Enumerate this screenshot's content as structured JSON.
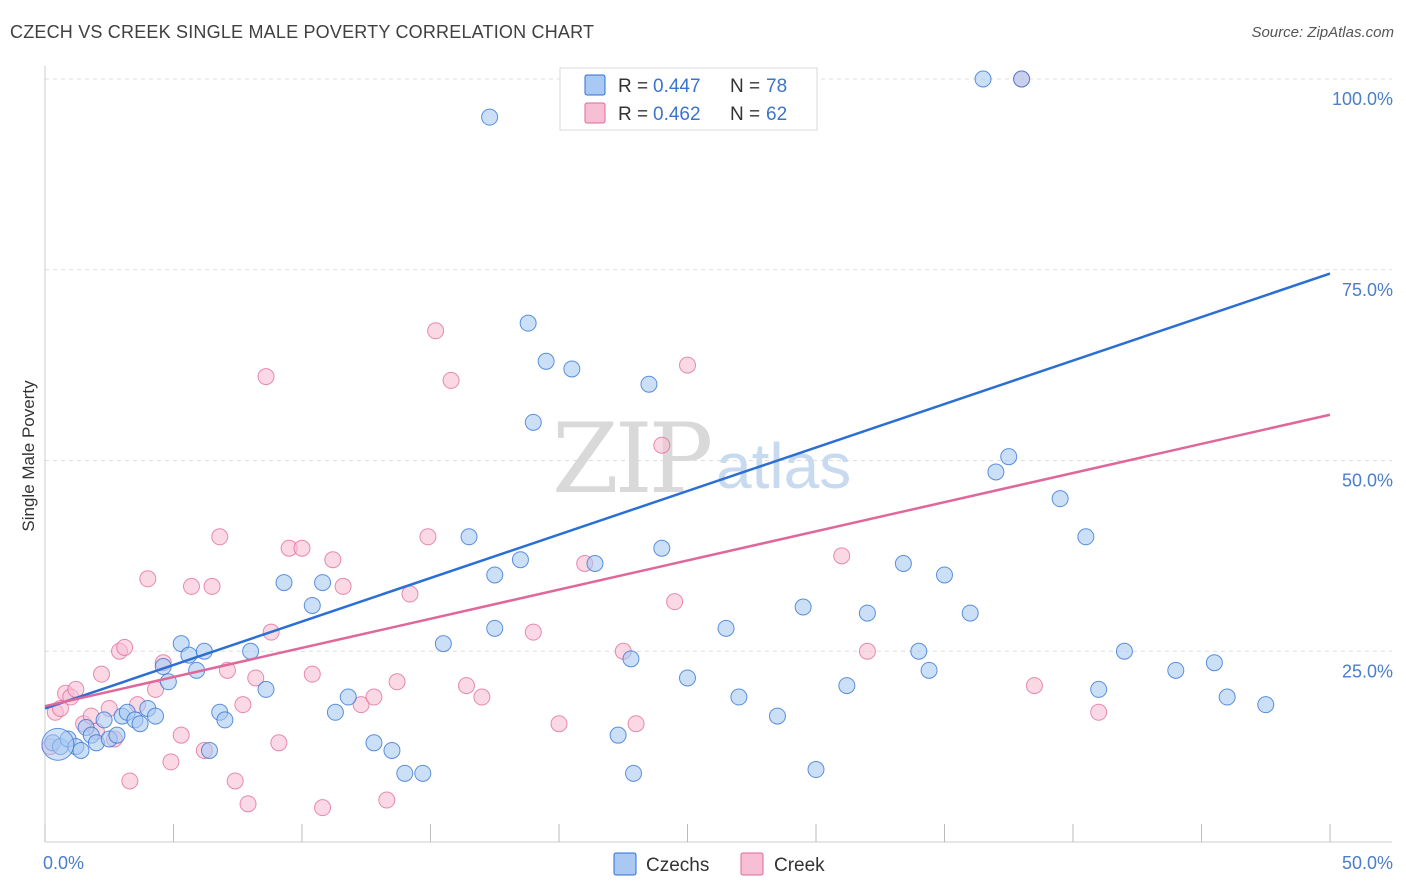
{
  "title": "CZECH VS CREEK SINGLE MALE POVERTY CORRELATION CHART",
  "source": "Source: ZipAtlas.com",
  "watermark": {
    "zip": "ZIP",
    "atlas": "atlas"
  },
  "colors": {
    "czech": "#2b6fd4",
    "czech_fill": "#a9c9f2",
    "creek": "#e0679a",
    "creek_fill": "#f7bfd3",
    "grid": "#dddddd",
    "axis_label": "#4a7ec9"
  },
  "legend": {
    "czech": {
      "r_label": "R = ",
      "r_value": "0.447",
      "n_label": "N = ",
      "n_value": "78"
    },
    "creek": {
      "r_label": "R = ",
      "r_value": "0.462",
      "n_label": "N = ",
      "n_value": "62"
    }
  },
  "bottom_legend": {
    "czech": "Czechs",
    "creek": "Creek"
  },
  "chart_data": {
    "type": "scatter",
    "title": "CZECH VS CREEK SINGLE MALE POVERTY CORRELATION CHART",
    "xlabel": "",
    "ylabel": "Single Male Poverty",
    "xlim": [
      0,
      50
    ],
    "ylim": [
      0,
      100
    ],
    "x_tick_labels": [
      {
        "value": 0,
        "label": "0.0%"
      },
      {
        "value": 50,
        "label": "50.0%"
      }
    ],
    "y_tick_labels": [
      {
        "value": 25,
        "label": "25.0%"
      },
      {
        "value": 50,
        "label": "50.0%"
      },
      {
        "value": 75,
        "label": "75.0%"
      },
      {
        "value": 100,
        "label": "100.0%"
      }
    ],
    "x_ticks": [
      0,
      5,
      10,
      15,
      20,
      25,
      30,
      35,
      40,
      45,
      50
    ],
    "series": [
      {
        "name": "Czechs",
        "r": 0.447,
        "n": 78,
        "trend": {
          "x0": 0,
          "y0": 17.5,
          "x1": 50,
          "y1": 74.5
        },
        "points": [
          [
            0.3,
            13
          ],
          [
            0.6,
            12.5
          ],
          [
            0.9,
            13.5
          ],
          [
            1.2,
            12.5
          ],
          [
            1.4,
            12
          ],
          [
            1.6,
            15
          ],
          [
            1.8,
            14
          ],
          [
            2.0,
            13
          ],
          [
            2.3,
            16
          ],
          [
            2.5,
            13.5
          ],
          [
            2.8,
            14
          ],
          [
            3.0,
            16.5
          ],
          [
            3.2,
            17
          ],
          [
            3.5,
            16
          ],
          [
            3.7,
            15.5
          ],
          [
            4.0,
            17.5
          ],
          [
            4.3,
            16.5
          ],
          [
            4.6,
            23
          ],
          [
            4.8,
            21
          ],
          [
            5.3,
            26
          ],
          [
            5.6,
            24.5
          ],
          [
            5.9,
            22.5
          ],
          [
            6.2,
            25
          ],
          [
            6.8,
            17
          ],
          [
            6.4,
            12
          ],
          [
            7.0,
            16
          ],
          [
            8.0,
            25
          ],
          [
            8.6,
            20
          ],
          [
            9.3,
            34
          ],
          [
            10.4,
            31
          ],
          [
            10.8,
            34
          ],
          [
            11.3,
            17
          ],
          [
            11.8,
            19
          ],
          [
            12.8,
            13
          ],
          [
            13.5,
            12
          ],
          [
            14.0,
            9
          ],
          [
            14.7,
            9
          ],
          [
            15.5,
            26
          ],
          [
            16.5,
            40
          ],
          [
            17.5,
            28
          ],
          [
            17.5,
            35
          ],
          [
            18.5,
            37
          ],
          [
            18.8,
            68
          ],
          [
            19.5,
            63
          ],
          [
            20.5,
            62
          ],
          [
            21.4,
            36.5
          ],
          [
            22.3,
            14
          ],
          [
            22.8,
            24
          ],
          [
            22.9,
            9
          ],
          [
            24.0,
            38.5
          ],
          [
            25.0,
            21.5
          ],
          [
            26.5,
            28
          ],
          [
            27.0,
            19
          ],
          [
            28.5,
            16.5
          ],
          [
            29.5,
            30.8
          ],
          [
            30.0,
            9.5
          ],
          [
            31.2,
            20.5
          ],
          [
            32.0,
            30
          ],
          [
            33.4,
            36.5
          ],
          [
            34.0,
            25
          ],
          [
            34.4,
            22.5
          ],
          [
            35.0,
            35
          ],
          [
            36.0,
            30
          ],
          [
            36.5,
            100
          ],
          [
            37.0,
            48.5
          ],
          [
            37.5,
            50.5
          ],
          [
            38.0,
            100
          ],
          [
            39.5,
            45
          ],
          [
            40.5,
            40
          ],
          [
            41.0,
            20
          ],
          [
            42.0,
            25
          ],
          [
            44.0,
            22.5
          ],
          [
            45.5,
            23.5
          ],
          [
            46.0,
            19
          ],
          [
            47.5,
            18
          ],
          [
            17.3,
            95
          ],
          [
            19.0,
            55
          ],
          [
            23.5,
            60
          ]
        ]
      },
      {
        "name": "Creek",
        "r": 0.462,
        "n": 62,
        "trend": {
          "x0": 0,
          "y0": 17.8,
          "x1": 50,
          "y1": 56
        },
        "points": [
          [
            0.2,
            12.5
          ],
          [
            0.4,
            17
          ],
          [
            0.6,
            17.5
          ],
          [
            0.8,
            19.5
          ],
          [
            1.0,
            19
          ],
          [
            1.2,
            20
          ],
          [
            1.5,
            15.5
          ],
          [
            1.8,
            16.5
          ],
          [
            2.0,
            14.5
          ],
          [
            2.2,
            22
          ],
          [
            2.5,
            17.5
          ],
          [
            2.7,
            13.5
          ],
          [
            2.9,
            25
          ],
          [
            3.1,
            25.5
          ],
          [
            3.3,
            8
          ],
          [
            3.6,
            18
          ],
          [
            4.0,
            34.5
          ],
          [
            4.3,
            20
          ],
          [
            4.6,
            23.5
          ],
          [
            4.9,
            10.5
          ],
          [
            5.3,
            14
          ],
          [
            5.7,
            33.5
          ],
          [
            6.2,
            12
          ],
          [
            6.5,
            33.5
          ],
          [
            6.8,
            40
          ],
          [
            7.1,
            22.5
          ],
          [
            7.4,
            8
          ],
          [
            7.7,
            18
          ],
          [
            7.9,
            5
          ],
          [
            8.2,
            21.5
          ],
          [
            8.6,
            61
          ],
          [
            8.8,
            27.5
          ],
          [
            9.1,
            13
          ],
          [
            9.5,
            38.5
          ],
          [
            10.0,
            38.5
          ],
          [
            10.4,
            22
          ],
          [
            10.8,
            4.5
          ],
          [
            11.2,
            37
          ],
          [
            11.6,
            33.5
          ],
          [
            12.3,
            18
          ],
          [
            12.8,
            19
          ],
          [
            13.3,
            5.5
          ],
          [
            13.7,
            21
          ],
          [
            14.2,
            32.5
          ],
          [
            14.9,
            40
          ],
          [
            15.2,
            67
          ],
          [
            15.8,
            60.5
          ],
          [
            16.4,
            20.5
          ],
          [
            17.0,
            19
          ],
          [
            19.0,
            27.5
          ],
          [
            20.0,
            15.5
          ],
          [
            21.0,
            36.5
          ],
          [
            22.5,
            25
          ],
          [
            23.0,
            15.5
          ],
          [
            24.0,
            52
          ],
          [
            24.5,
            31.5
          ],
          [
            25.0,
            62.5
          ],
          [
            31.0,
            37.5
          ],
          [
            32.0,
            25
          ],
          [
            38.0,
            100
          ],
          [
            38.5,
            20.5
          ],
          [
            41.0,
            17
          ]
        ]
      }
    ]
  }
}
